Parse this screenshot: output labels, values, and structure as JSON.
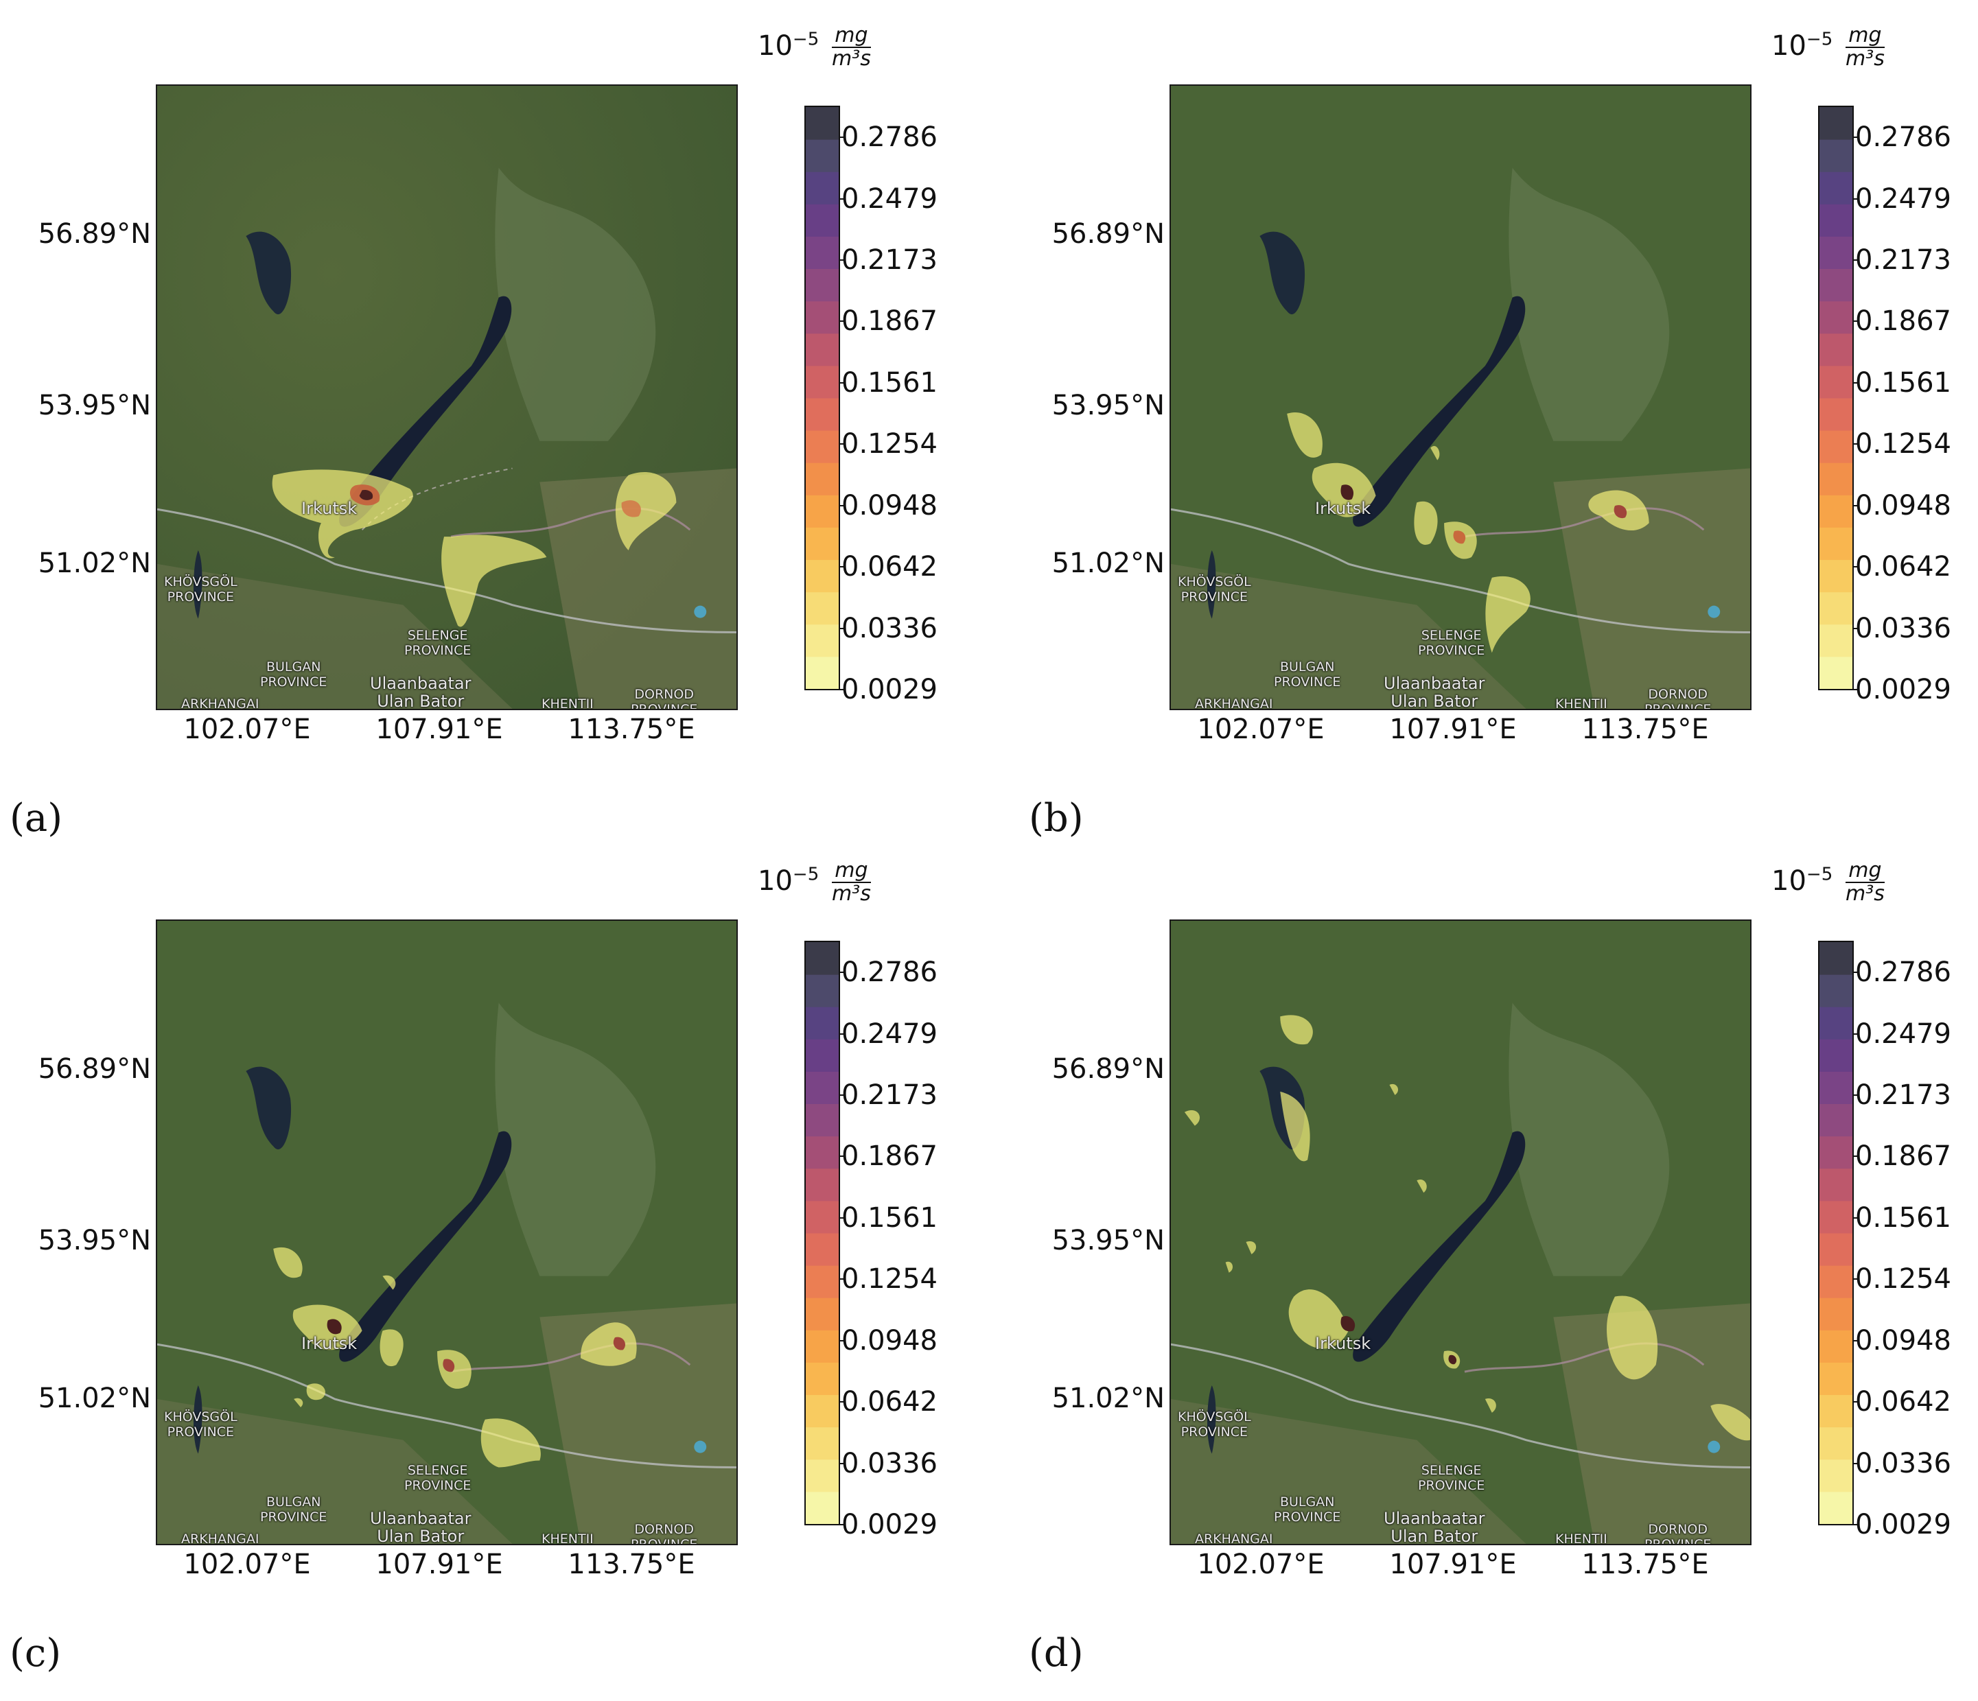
{
  "figure": {
    "colorbar": {
      "unit_prefix": "10",
      "unit_exponent": "−5",
      "unit_numerator": "mg",
      "unit_denominator": "m³s",
      "ticks": [
        "0.2786",
        "0.2479",
        "0.2173",
        "0.1867",
        "0.1561",
        "0.1254",
        "0.0948",
        "0.0642",
        "0.0336",
        "0.0029"
      ],
      "colors": [
        "#f6f6a8",
        "#f7ea8f",
        "#f7dc76",
        "#f8cb60",
        "#f9b64f",
        "#f7a448",
        "#f2904a",
        "#eb7e53",
        "#e06e5c",
        "#d06264",
        "#bd586c",
        "#a44f76",
        "#8e4a80",
        "#7a4486",
        "#683f86",
        "#574381",
        "#4d4a6b",
        "#3b3b4a"
      ]
    },
    "axes": {
      "y_ticks": [
        "56.89°N",
        "53.95°N",
        "51.02°N"
      ],
      "x_ticks": [
        "102.07°E",
        "107.91°E",
        "113.75°E"
      ]
    },
    "map_labels": {
      "irkutsk": "Irkutsk",
      "khovsgol": "KHÖVSGÖL\nPROVINCE",
      "selenge": "SELENGE\nPROVINCE",
      "bulgan": "BULGAN\nPROVINCE",
      "ulaanbaatar": "Ulaanbaatar\nUlan Bator",
      "arkhangai": "ARKHANGAI",
      "khentii": "KHENTII",
      "dornod": "DORNOD\nPROVINCE"
    },
    "panels": [
      {
        "label": "(a)"
      },
      {
        "label": "(b)"
      },
      {
        "label": "(c)"
      },
      {
        "label": "(d)"
      }
    ]
  }
}
